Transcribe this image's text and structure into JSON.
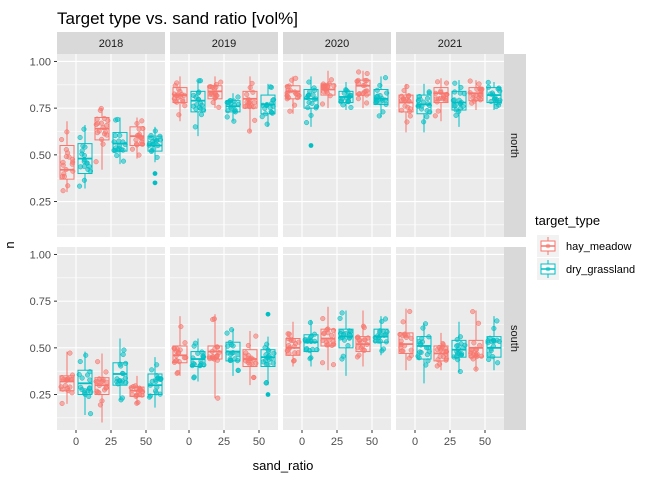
{
  "chart_data": {
    "type": "boxplot",
    "title": "Target type vs. sand ratio [vol%]",
    "xlabel": "sand_ratio",
    "ylabel": "n",
    "x_categories": [
      "0",
      "25",
      "50"
    ],
    "y_ticks": [
      "0.25",
      "0.50",
      "0.75",
      "1.00"
    ],
    "ylim": [
      0.06,
      1.04
    ],
    "facet_cols": [
      "2018",
      "2019",
      "2020",
      "2021"
    ],
    "facet_rows": [
      "north",
      "south"
    ],
    "legend": {
      "title": "target_type",
      "position": "right",
      "entries": [
        {
          "name": "hay_meadow",
          "color": "#F8766D"
        },
        {
          "name": "dry_grassland",
          "color": "#00BFC4"
        }
      ]
    },
    "grid": true,
    "series": [
      {
        "name": "hay_meadow",
        "color": "#F8766D"
      },
      {
        "name": "dry_grassland",
        "color": "#00BFC4"
      }
    ],
    "panels": [
      {
        "year": "2018",
        "site": "north",
        "boxes": [
          {
            "series": "hay_meadow",
            "x": "0",
            "min": 0.3,
            "q1": 0.37,
            "median": 0.42,
            "q3": 0.55,
            "max": 0.68
          },
          {
            "series": "dry_grassland",
            "x": "0",
            "min": 0.32,
            "q1": 0.4,
            "median": 0.48,
            "q3": 0.56,
            "max": 0.66
          },
          {
            "series": "hay_meadow",
            "x": "25",
            "min": 0.42,
            "q1": 0.58,
            "median": 0.64,
            "q3": 0.7,
            "max": 0.75
          },
          {
            "series": "dry_grassland",
            "x": "25",
            "min": 0.45,
            "q1": 0.52,
            "median": 0.56,
            "q3": 0.62,
            "max": 0.7
          },
          {
            "series": "hay_meadow",
            "x": "50",
            "min": 0.48,
            "q1": 0.55,
            "median": 0.6,
            "q3": 0.65,
            "max": 0.7
          },
          {
            "series": "dry_grassland",
            "x": "50",
            "min": 0.46,
            "q1": 0.52,
            "median": 0.55,
            "q3": 0.6,
            "max": 0.65,
            "outliers": [
              0.4,
              0.35
            ]
          }
        ]
      },
      {
        "year": "2019",
        "site": "north",
        "boxes": [
          {
            "series": "hay_meadow",
            "x": "0",
            "min": 0.68,
            "q1": 0.78,
            "median": 0.82,
            "q3": 0.86,
            "max": 0.92
          },
          {
            "series": "dry_grassland",
            "x": "0",
            "min": 0.6,
            "q1": 0.73,
            "median": 0.79,
            "q3": 0.84,
            "max": 0.9
          },
          {
            "series": "hay_meadow",
            "x": "25",
            "min": 0.75,
            "q1": 0.8,
            "median": 0.84,
            "q3": 0.87,
            "max": 0.92
          },
          {
            "series": "dry_grassland",
            "x": "25",
            "min": 0.68,
            "q1": 0.73,
            "median": 0.76,
            "q3": 0.79,
            "max": 0.83
          },
          {
            "series": "hay_meadow",
            "x": "50",
            "min": 0.62,
            "q1": 0.75,
            "median": 0.8,
            "q3": 0.84,
            "max": 0.92
          },
          {
            "series": "dry_grassland",
            "x": "50",
            "min": 0.65,
            "q1": 0.72,
            "median": 0.77,
            "q3": 0.82,
            "max": 0.88
          }
        ]
      },
      {
        "year": "2020",
        "site": "north",
        "boxes": [
          {
            "series": "hay_meadow",
            "x": "0",
            "min": 0.72,
            "q1": 0.8,
            "median": 0.84,
            "q3": 0.87,
            "max": 0.92
          },
          {
            "series": "dry_grassland",
            "x": "0",
            "min": 0.65,
            "q1": 0.75,
            "median": 0.8,
            "q3": 0.85,
            "max": 0.92,
            "outliers": [
              0.55
            ]
          },
          {
            "series": "hay_meadow",
            "x": "25",
            "min": 0.75,
            "q1": 0.82,
            "median": 0.85,
            "q3": 0.88,
            "max": 0.95
          },
          {
            "series": "dry_grassland",
            "x": "25",
            "min": 0.74,
            "q1": 0.78,
            "median": 0.81,
            "q3": 0.84,
            "max": 0.89
          },
          {
            "series": "hay_meadow",
            "x": "50",
            "min": 0.75,
            "q1": 0.82,
            "median": 0.87,
            "q3": 0.9,
            "max": 0.95
          },
          {
            "series": "dry_grassland",
            "x": "50",
            "min": 0.7,
            "q1": 0.77,
            "median": 0.8,
            "q3": 0.85,
            "max": 0.92
          }
        ]
      },
      {
        "year": "2021",
        "site": "north",
        "boxes": [
          {
            "series": "hay_meadow",
            "x": "0",
            "min": 0.62,
            "q1": 0.73,
            "median": 0.78,
            "q3": 0.82,
            "max": 0.88
          },
          {
            "series": "dry_grassland",
            "x": "0",
            "min": 0.62,
            "q1": 0.72,
            "median": 0.77,
            "q3": 0.82,
            "max": 0.88
          },
          {
            "series": "hay_meadow",
            "x": "25",
            "min": 0.68,
            "q1": 0.78,
            "median": 0.83,
            "q3": 0.86,
            "max": 0.91
          },
          {
            "series": "dry_grassland",
            "x": "25",
            "min": 0.65,
            "q1": 0.74,
            "median": 0.78,
            "q3": 0.84,
            "max": 0.9
          },
          {
            "series": "hay_meadow",
            "x": "50",
            "min": 0.74,
            "q1": 0.79,
            "median": 0.83,
            "q3": 0.86,
            "max": 0.9
          },
          {
            "series": "dry_grassland",
            "x": "50",
            "min": 0.74,
            "q1": 0.78,
            "median": 0.82,
            "q3": 0.86,
            "max": 0.89
          }
        ]
      },
      {
        "year": "2018",
        "site": "south",
        "boxes": [
          {
            "series": "hay_meadow",
            "x": "0",
            "min": 0.2,
            "q1": 0.27,
            "median": 0.32,
            "q3": 0.35,
            "max": 0.48
          },
          {
            "series": "dry_grassland",
            "x": "0",
            "min": 0.14,
            "q1": 0.25,
            "median": 0.31,
            "q3": 0.38,
            "max": 0.48
          },
          {
            "series": "hay_meadow",
            "x": "25",
            "min": 0.1,
            "q1": 0.25,
            "median": 0.3,
            "q3": 0.34,
            "max": 0.47
          },
          {
            "series": "dry_grassland",
            "x": "25",
            "min": 0.22,
            "q1": 0.3,
            "median": 0.36,
            "q3": 0.42,
            "max": 0.55
          },
          {
            "series": "hay_meadow",
            "x": "50",
            "min": 0.2,
            "q1": 0.24,
            "median": 0.27,
            "q3": 0.29,
            "max": 0.35
          },
          {
            "series": "dry_grassland",
            "x": "50",
            "min": 0.18,
            "q1": 0.25,
            "median": 0.3,
            "q3": 0.36,
            "max": 0.45
          }
        ]
      },
      {
        "year": "2019",
        "site": "south",
        "boxes": [
          {
            "series": "hay_meadow",
            "x": "0",
            "min": 0.35,
            "q1": 0.42,
            "median": 0.46,
            "q3": 0.51,
            "max": 0.67
          },
          {
            "series": "dry_grassland",
            "x": "0",
            "min": 0.32,
            "q1": 0.4,
            "median": 0.44,
            "q3": 0.48,
            "max": 0.55
          },
          {
            "series": "hay_meadow",
            "x": "25",
            "min": 0.23,
            "q1": 0.44,
            "median": 0.48,
            "q3": 0.51,
            "max": 0.68
          },
          {
            "series": "dry_grassland",
            "x": "25",
            "min": 0.35,
            "q1": 0.43,
            "median": 0.48,
            "q3": 0.53,
            "max": 0.6
          },
          {
            "series": "hay_meadow",
            "x": "50",
            "min": 0.3,
            "q1": 0.4,
            "median": 0.44,
            "q3": 0.49,
            "max": 0.59
          },
          {
            "series": "dry_grassland",
            "x": "50",
            "min": 0.3,
            "q1": 0.4,
            "median": 0.45,
            "q3": 0.49,
            "max": 0.56,
            "outliers": [
              0.68,
              0.25
            ]
          }
        ]
      },
      {
        "year": "2020",
        "site": "south",
        "boxes": [
          {
            "series": "hay_meadow",
            "x": "0",
            "min": 0.4,
            "q1": 0.46,
            "median": 0.5,
            "q3": 0.55,
            "max": 0.64
          },
          {
            "series": "dry_grassland",
            "x": "0",
            "min": 0.4,
            "q1": 0.48,
            "median": 0.53,
            "q3": 0.57,
            "max": 0.65
          },
          {
            "series": "hay_meadow",
            "x": "25",
            "min": 0.38,
            "q1": 0.51,
            "median": 0.55,
            "q3": 0.6,
            "max": 0.72
          },
          {
            "series": "dry_grassland",
            "x": "25",
            "min": 0.35,
            "q1": 0.5,
            "median": 0.56,
            "q3": 0.6,
            "max": 0.7
          },
          {
            "series": "hay_meadow",
            "x": "50",
            "min": 0.4,
            "q1": 0.48,
            "median": 0.52,
            "q3": 0.56,
            "max": 0.7
          },
          {
            "series": "dry_grassland",
            "x": "50",
            "min": 0.46,
            "q1": 0.53,
            "median": 0.56,
            "q3": 0.6,
            "max": 0.67
          }
        ]
      },
      {
        "year": "2021",
        "site": "south",
        "boxes": [
          {
            "series": "hay_meadow",
            "x": "0",
            "min": 0.38,
            "q1": 0.47,
            "median": 0.52,
            "q3": 0.58,
            "max": 0.71
          },
          {
            "series": "dry_grassland",
            "x": "0",
            "min": 0.31,
            "q1": 0.44,
            "median": 0.51,
            "q3": 0.56,
            "max": 0.63
          },
          {
            "series": "hay_meadow",
            "x": "25",
            "min": 0.38,
            "q1": 0.43,
            "median": 0.47,
            "q3": 0.51,
            "max": 0.58
          },
          {
            "series": "dry_grassland",
            "x": "25",
            "min": 0.37,
            "q1": 0.45,
            "median": 0.49,
            "q3": 0.54,
            "max": 0.64
          },
          {
            "series": "hay_meadow",
            "x": "50",
            "min": 0.38,
            "q1": 0.45,
            "median": 0.5,
            "q3": 0.54,
            "max": 0.7
          },
          {
            "series": "dry_grassland",
            "x": "50",
            "min": 0.38,
            "q1": 0.45,
            "median": 0.5,
            "q3": 0.56,
            "max": 0.67
          }
        ]
      }
    ]
  }
}
